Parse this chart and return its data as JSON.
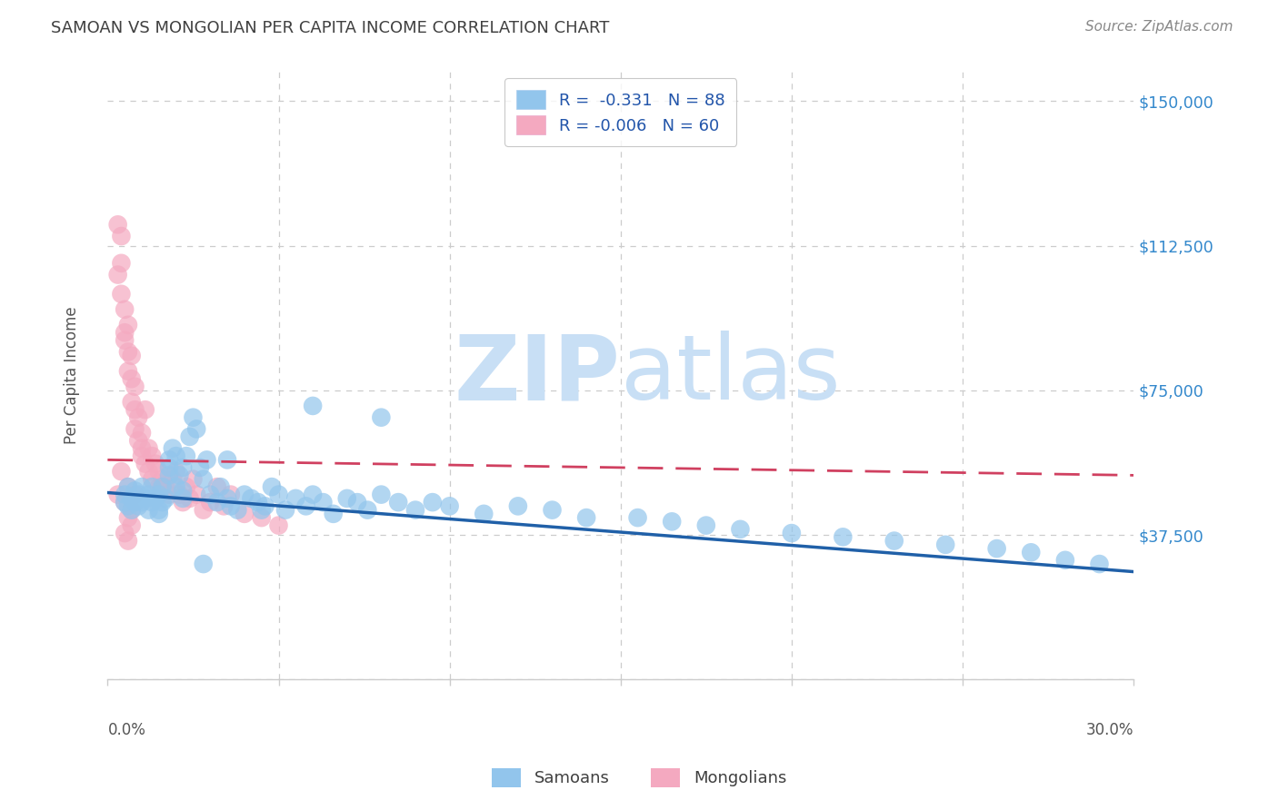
{
  "title": "SAMOAN VS MONGOLIAN PER CAPITA INCOME CORRELATION CHART",
  "source": "Source: ZipAtlas.com",
  "ylabel": "Per Capita Income",
  "xlim": [
    0.0,
    0.3
  ],
  "ylim": [
    0,
    158000
  ],
  "yticks": [
    0,
    37500,
    75000,
    112500,
    150000
  ],
  "ytick_labels": [
    "",
    "$37,500",
    "$75,000",
    "$112,500",
    "$150,000"
  ],
  "xtick_positions": [
    0.0,
    0.05,
    0.1,
    0.15,
    0.2,
    0.25,
    0.3
  ],
  "legend_line1": "R =  -0.331   N = 88",
  "legend_line2": "R = -0.006   N = 60",
  "legend_label_blue": "Samoans",
  "legend_label_pink": "Mongolians",
  "blue_scatter_color": "#92C5EC",
  "pink_scatter_color": "#F4A9C0",
  "blue_line_color": "#2060A8",
  "pink_line_color": "#D04060",
  "title_color": "#404040",
  "axis_label_color": "#555555",
  "ytick_color": "#3388CC",
  "source_color": "#888888",
  "legend_text_color": "#2255AA",
  "watermark_zip_color": "#C8DFF5",
  "watermark_atlas_color": "#C8DFF5",
  "background_color": "#FFFFFF",
  "grid_color": "#CCCCCC",
  "samoans_x": [
    0.005,
    0.005,
    0.006,
    0.006,
    0.007,
    0.007,
    0.008,
    0.008,
    0.009,
    0.009,
    0.01,
    0.01,
    0.011,
    0.012,
    0.012,
    0.013,
    0.013,
    0.014,
    0.015,
    0.015,
    0.016,
    0.016,
    0.017,
    0.018,
    0.018,
    0.019,
    0.02,
    0.02,
    0.021,
    0.022,
    0.022,
    0.023,
    0.024,
    0.025,
    0.026,
    0.027,
    0.028,
    0.029,
    0.03,
    0.032,
    0.033,
    0.035,
    0.036,
    0.038,
    0.04,
    0.042,
    0.044,
    0.046,
    0.048,
    0.05,
    0.052,
    0.055,
    0.058,
    0.06,
    0.063,
    0.066,
    0.07,
    0.073,
    0.076,
    0.08,
    0.085,
    0.09,
    0.095,
    0.1,
    0.11,
    0.12,
    0.13,
    0.14,
    0.155,
    0.165,
    0.175,
    0.185,
    0.2,
    0.215,
    0.23,
    0.245,
    0.26,
    0.27,
    0.28,
    0.29,
    0.022,
    0.028,
    0.035,
    0.045,
    0.06,
    0.08,
    0.015,
    0.018
  ],
  "samoans_y": [
    48000,
    46000,
    45000,
    50000,
    47000,
    44000,
    49000,
    46000,
    48000,
    45000,
    46000,
    50000,
    47000,
    48000,
    44000,
    46000,
    50000,
    47000,
    48000,
    43000,
    50000,
    46000,
    47000,
    55000,
    53000,
    60000,
    58000,
    50000,
    53000,
    55000,
    49000,
    58000,
    63000,
    68000,
    65000,
    55000,
    52000,
    57000,
    48000,
    46000,
    50000,
    47000,
    45000,
    44000,
    48000,
    47000,
    46000,
    45000,
    50000,
    48000,
    44000,
    47000,
    45000,
    48000,
    46000,
    43000,
    47000,
    46000,
    44000,
    48000,
    46000,
    44000,
    46000,
    45000,
    43000,
    45000,
    44000,
    42000,
    42000,
    41000,
    40000,
    39000,
    38000,
    37000,
    36000,
    35000,
    34000,
    33000,
    31000,
    30000,
    47000,
    30000,
    57000,
    44000,
    71000,
    68000,
    44000,
    57000
  ],
  "mongolians_x": [
    0.003,
    0.003,
    0.004,
    0.004,
    0.004,
    0.005,
    0.005,
    0.005,
    0.006,
    0.006,
    0.006,
    0.007,
    0.007,
    0.007,
    0.008,
    0.008,
    0.008,
    0.009,
    0.009,
    0.01,
    0.01,
    0.01,
    0.011,
    0.011,
    0.012,
    0.012,
    0.013,
    0.013,
    0.014,
    0.015,
    0.015,
    0.016,
    0.017,
    0.018,
    0.019,
    0.02,
    0.021,
    0.022,
    0.023,
    0.024,
    0.025,
    0.026,
    0.028,
    0.03,
    0.032,
    0.034,
    0.036,
    0.04,
    0.045,
    0.05,
    0.003,
    0.004,
    0.005,
    0.006,
    0.007,
    0.008,
    0.007,
    0.006,
    0.005,
    0.006
  ],
  "mongolians_y": [
    118000,
    105000,
    108000,
    100000,
    115000,
    96000,
    90000,
    88000,
    92000,
    85000,
    80000,
    84000,
    78000,
    72000,
    76000,
    70000,
    65000,
    68000,
    62000,
    64000,
    58000,
    60000,
    70000,
    56000,
    60000,
    54000,
    58000,
    52000,
    56000,
    54000,
    50000,
    52000,
    50000,
    48000,
    52000,
    54000,
    48000,
    46000,
    50000,
    47000,
    52000,
    48000,
    44000,
    46000,
    50000,
    45000,
    48000,
    43000,
    42000,
    40000,
    48000,
    54000,
    46000,
    50000,
    44000,
    48000,
    40000,
    42000,
    38000,
    36000
  ]
}
